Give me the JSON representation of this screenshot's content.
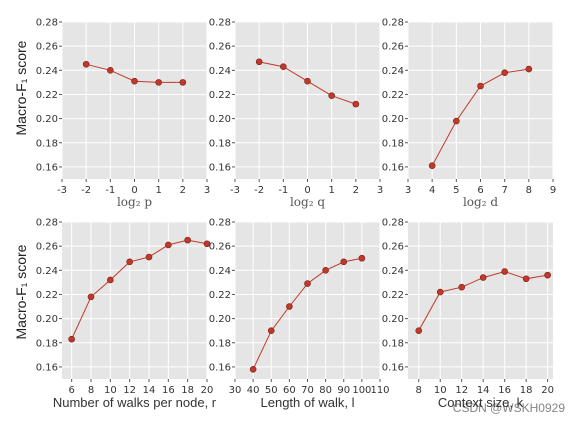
{
  "watermark": "CSDN @WSKH0929",
  "ylabel": "Macro-F₁ score",
  "chart_data": [
    {
      "type": "line",
      "row": 0,
      "col": 0,
      "xlabel": "log₂ p",
      "xlim": [
        -3,
        3
      ],
      "xticks": [
        -3,
        -2,
        -1,
        0,
        1,
        2,
        3
      ],
      "ylim": [
        0.15,
        0.28
      ],
      "yticks": [
        0.16,
        0.18,
        0.2,
        0.22,
        0.24,
        0.26,
        0.28
      ],
      "x": [
        -2,
        -1,
        0,
        1,
        2
      ],
      "y": [
        0.245,
        0.24,
        0.231,
        0.23,
        0.23
      ],
      "color": "#c0392b",
      "grid": true
    },
    {
      "type": "line",
      "row": 0,
      "col": 1,
      "xlabel": "log₂ q",
      "xlim": [
        -3,
        3
      ],
      "xticks": [
        -3,
        -2,
        -1,
        0,
        1,
        2,
        3
      ],
      "ylim": [
        0.15,
        0.28
      ],
      "yticks": [
        0.16,
        0.18,
        0.2,
        0.22,
        0.24,
        0.26,
        0.28
      ],
      "x": [
        -2,
        -1,
        0,
        1,
        2
      ],
      "y": [
        0.247,
        0.243,
        0.231,
        0.219,
        0.212
      ],
      "color": "#c0392b",
      "grid": true
    },
    {
      "type": "line",
      "row": 0,
      "col": 2,
      "xlabel": "log₂ d",
      "xlim": [
        3,
        9
      ],
      "xticks": [
        3,
        4,
        5,
        6,
        7,
        8,
        9
      ],
      "ylim": [
        0.15,
        0.28
      ],
      "yticks": [
        0.16,
        0.18,
        0.2,
        0.22,
        0.24,
        0.26,
        0.28
      ],
      "x": [
        4,
        5,
        6,
        7,
        8
      ],
      "y": [
        0.161,
        0.198,
        0.227,
        0.238,
        0.241
      ],
      "color": "#c0392b",
      "grid": true
    },
    {
      "type": "line",
      "row": 1,
      "col": 0,
      "xlabel": "Number of walks per node, r",
      "xlim": [
        5,
        20
      ],
      "xticks": [
        6,
        8,
        10,
        12,
        14,
        16,
        18,
        20
      ],
      "ylim": [
        0.15,
        0.28
      ],
      "yticks": [
        0.16,
        0.18,
        0.2,
        0.22,
        0.24,
        0.26,
        0.28
      ],
      "x": [
        6,
        8,
        10,
        12,
        14,
        16,
        18,
        20
      ],
      "y": [
        0.183,
        0.218,
        0.232,
        0.247,
        0.251,
        0.261,
        0.265,
        0.262
      ],
      "color": "#c0392b",
      "grid": true
    },
    {
      "type": "line",
      "row": 1,
      "col": 1,
      "xlabel": "Length of walk, l",
      "xlim": [
        30,
        110
      ],
      "xticks": [
        30,
        40,
        50,
        60,
        70,
        80,
        90,
        100,
        110
      ],
      "ylim": [
        0.15,
        0.28
      ],
      "yticks": [
        0.16,
        0.18,
        0.2,
        0.22,
        0.24,
        0.26,
        0.28
      ],
      "x": [
        40,
        50,
        60,
        70,
        80,
        90,
        100
      ],
      "y": [
        0.158,
        0.19,
        0.21,
        0.229,
        0.24,
        0.247,
        0.25
      ],
      "color": "#c0392b",
      "grid": true
    },
    {
      "type": "line",
      "row": 1,
      "col": 2,
      "xlabel": "Context size, k",
      "xlim": [
        7,
        20.5
      ],
      "xticks": [
        8,
        10,
        12,
        14,
        16,
        18,
        20
      ],
      "ylim": [
        0.15,
        0.28
      ],
      "yticks": [
        0.16,
        0.18,
        0.2,
        0.22,
        0.24,
        0.26,
        0.28
      ],
      "x": [
        8,
        10,
        12,
        14,
        16,
        18,
        20
      ],
      "y": [
        0.19,
        0.222,
        0.226,
        0.234,
        0.239,
        0.233,
        0.236
      ],
      "color": "#c0392b",
      "grid": true
    }
  ]
}
